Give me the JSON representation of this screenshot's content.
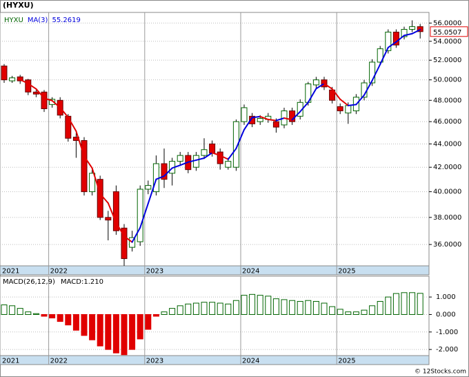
{
  "title": "(HYXU)",
  "footer": "© 12Stocks.com",
  "chart_data": [
    {
      "type": "candlestick",
      "symbol": "HYXU",
      "ma_name": "MA(3)",
      "log_scale": true,
      "grid": true,
      "up_color": "#006400",
      "down_color": "#e00000",
      "ma_up_color": "#0000dd",
      "ma_down_color": "#e00000",
      "categories": [
        "2021",
        null,
        null,
        null,
        null,
        null,
        "2022",
        null,
        null,
        null,
        null,
        null,
        null,
        null,
        null,
        null,
        null,
        null,
        "2023",
        null,
        null,
        null,
        null,
        null,
        null,
        null,
        null,
        null,
        null,
        null,
        "2024",
        null,
        null,
        null,
        null,
        null,
        null,
        null,
        null,
        null,
        null,
        null,
        "2025",
        null,
        null,
        null,
        null,
        null,
        null,
        null,
        null,
        null,
        null
      ],
      "open": [
        51.4,
        49.9,
        50.3,
        50.0,
        48.8,
        48.8,
        47.6,
        48.0,
        46.5,
        44.6,
        44.3,
        40.0,
        41.0,
        38.0,
        40.0,
        37.2,
        35.8,
        36.2,
        40.2,
        40.0,
        42.3,
        41.5,
        42.5,
        43.0,
        42.0,
        43.0,
        44.0,
        43.3,
        42.0,
        42.0,
        46.0,
        46.5,
        46.0,
        46.2,
        46.0,
        45.7,
        47.0,
        46.5,
        47.8,
        49.5,
        50.0,
        49.0,
        47.4,
        46.8,
        47.0,
        48.3,
        49.7,
        51.8,
        53.0,
        55.0,
        54.5,
        55.3,
        55.6
      ],
      "high": [
        51.6,
        50.4,
        50.5,
        50.1,
        49.0,
        49.0,
        48.3,
        48.3,
        46.7,
        45.0,
        44.6,
        41.8,
        41.3,
        38.5,
        40.5,
        37.5,
        37.0,
        40.5,
        40.9,
        43.0,
        43.6,
        42.8,
        43.3,
        43.3,
        43.3,
        44.5,
        44.3,
        43.6,
        42.8,
        46.2,
        47.6,
        46.8,
        46.6,
        46.8,
        46.3,
        47.3,
        47.3,
        48.1,
        49.8,
        50.3,
        50.3,
        49.3,
        47.7,
        47.8,
        48.6,
        50.0,
        52.1,
        53.5,
        55.3,
        55.3,
        55.6,
        56.3,
        55.9
      ],
      "low": [
        49.7,
        49.7,
        49.6,
        48.5,
        48.3,
        46.9,
        47.3,
        46.3,
        44.2,
        42.8,
        39.7,
        39.7,
        37.8,
        36.3,
        36.7,
        34.5,
        35.5,
        35.9,
        39.8,
        39.7,
        40.3,
        40.5,
        42.2,
        41.5,
        41.7,
        42.7,
        42.9,
        41.8,
        41.8,
        41.7,
        45.7,
        45.5,
        45.7,
        45.9,
        45.0,
        45.4,
        45.7,
        46.2,
        47.5,
        49.2,
        49.0,
        47.7,
        46.7,
        45.8,
        46.7,
        48.0,
        49.4,
        51.5,
        52.7,
        53.3,
        54.2,
        55.0,
        54.3
      ],
      "close": [
        50.0,
        50.2,
        49.9,
        48.8,
        48.6,
        47.2,
        48.1,
        46.6,
        44.5,
        44.3,
        40.0,
        41.5,
        38.0,
        37.8,
        37.0,
        35.0,
        36.5,
        40.2,
        40.5,
        42.3,
        41.0,
        42.5,
        43.0,
        41.8,
        43.0,
        43.5,
        43.2,
        42.3,
        42.5,
        46.0,
        47.3,
        45.8,
        46.3,
        46.5,
        45.5,
        47.0,
        46.0,
        47.8,
        49.6,
        50.0,
        49.3,
        48.0,
        47.0,
        47.5,
        48.3,
        49.7,
        51.8,
        53.2,
        55.0,
        53.6,
        55.3,
        55.6,
        55.0507
      ],
      "ma": [
        null,
        null,
        50.03,
        49.63,
        49.1,
        48.2,
        47.97,
        47.3,
        46.4,
        45.13,
        42.93,
        41.93,
        39.83,
        39.1,
        37.6,
        36.6,
        36.17,
        37.23,
        39.07,
        41.0,
        41.27,
        41.93,
        42.17,
        42.43,
        42.6,
        42.77,
        43.23,
        43.0,
        42.67,
        43.6,
        45.27,
        46.37,
        46.47,
        46.2,
        46.1,
        46.33,
        46.17,
        46.93,
        47.8,
        49.13,
        49.63,
        49.1,
        48.1,
        47.5,
        47.6,
        48.5,
        49.93,
        51.57,
        53.33,
        53.93,
        54.63,
        54.83,
        55.2619
      ],
      "ylim": [
        34.5,
        57.2
      ],
      "yticks": [
        {
          "value": 36,
          "label": "36.0000"
        },
        {
          "value": 38,
          "label": "38.0000"
        },
        {
          "value": 40,
          "label": "40.0000"
        },
        {
          "value": 42,
          "label": "42.0000"
        },
        {
          "value": 44,
          "label": "44.0000"
        },
        {
          "value": 46,
          "label": "46.0000"
        },
        {
          "value": 48,
          "label": "48.0000"
        },
        {
          "value": 50,
          "label": "50.0000"
        },
        {
          "value": 52,
          "label": "52.0000"
        },
        {
          "value": 54,
          "label": "54.0000"
        },
        {
          "value": 56,
          "label": "56.0000"
        }
      ]
    },
    {
      "type": "histogram",
      "legend": "MACD(26,12,9)",
      "value_label": "MACD:1.210",
      "up_color": "#006400",
      "down_color": "#e00000",
      "categories": [
        "2021",
        null,
        null,
        null,
        null,
        null,
        "2022",
        null,
        null,
        null,
        null,
        null,
        null,
        null,
        null,
        null,
        null,
        null,
        "2023",
        null,
        null,
        null,
        null,
        null,
        null,
        null,
        null,
        null,
        null,
        null,
        "2024",
        null,
        null,
        null,
        null,
        null,
        null,
        null,
        null,
        null,
        null,
        null,
        "2025",
        null,
        null,
        null,
        null,
        null,
        null,
        null,
        null,
        null,
        null
      ],
      "values": [
        0.55,
        0.5,
        0.35,
        0.15,
        0.05,
        -0.1,
        -0.2,
        -0.4,
        -0.6,
        -0.9,
        -1.2,
        -1.45,
        -1.8,
        -2.0,
        -2.2,
        -2.3,
        -2.0,
        -1.4,
        -0.85,
        -0.1,
        0.15,
        0.35,
        0.5,
        0.6,
        0.65,
        0.7,
        0.7,
        0.65,
        0.6,
        0.8,
        1.1,
        1.15,
        1.1,
        1.05,
        0.9,
        0.85,
        0.8,
        0.75,
        0.8,
        0.75,
        0.65,
        0.45,
        0.3,
        0.15,
        0.15,
        0.25,
        0.5,
        0.75,
        1.0,
        1.2,
        1.25,
        1.25,
        1.21
      ],
      "ylim": [
        -2.35,
        2.19
      ],
      "yticks": [
        {
          "value": 1,
          "label": "1.000"
        },
        {
          "value": 0,
          "label": "0.000"
        },
        {
          "value": -1,
          "label": "-1.000"
        },
        {
          "value": -2,
          "label": "-2.000"
        }
      ]
    }
  ]
}
